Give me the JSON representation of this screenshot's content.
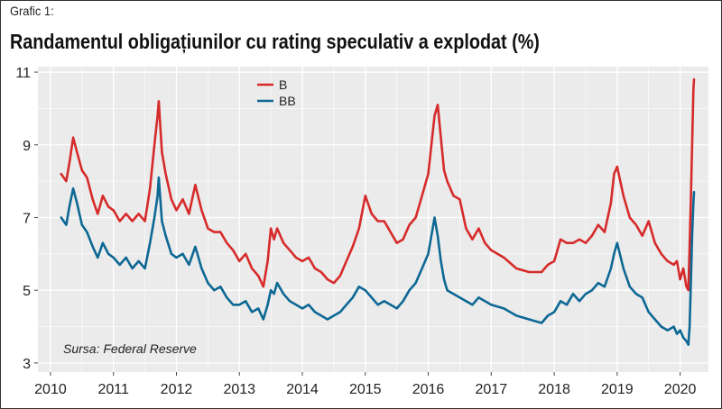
{
  "caption": "Grafic 1:",
  "title": "Randamentul obligațiunilor cu rating speculativ a explodat (%)",
  "source": "Sursa: Federal Reserve",
  "colors": {
    "panel": "#ebebeb",
    "grid": "#ffffff",
    "B": "#d62b2b",
    "BB": "#0d6894"
  },
  "chart_data": {
    "type": "line",
    "title": "Randamentul obligațiunilor cu rating speculativ a explodat (%)",
    "xlabel": "",
    "ylabel": "",
    "xlim": [
      2009.8,
      2020.45
    ],
    "ylim": [
      2.75,
      11.15
    ],
    "x_ticks": [
      2010,
      2011,
      2012,
      2013,
      2014,
      2015,
      2016,
      2017,
      2018,
      2019,
      2020
    ],
    "x_tick_labels": [
      "2010",
      "2011",
      "2012",
      "2013",
      "2014",
      "2015",
      "2016",
      "2017",
      "2018",
      "2019",
      "2020"
    ],
    "y_ticks": [
      3,
      5,
      7,
      9,
      11
    ],
    "y_tick_labels": [
      "3",
      "5",
      "7",
      "9",
      "11"
    ],
    "grid": true,
    "legend_position": "top-center",
    "series": [
      {
        "name": "B",
        "color": "#d62b2b",
        "x": [
          2010.17,
          2010.25,
          2010.3,
          2010.36,
          2010.42,
          2010.5,
          2010.58,
          2010.67,
          2010.75,
          2010.83,
          2010.92,
          2011.0,
          2011.1,
          2011.2,
          2011.3,
          2011.4,
          2011.5,
          2011.58,
          2011.65,
          2011.7,
          2011.72,
          2011.77,
          2011.83,
          2011.92,
          2012.0,
          2012.1,
          2012.2,
          2012.3,
          2012.4,
          2012.5,
          2012.6,
          2012.7,
          2012.8,
          2012.9,
          2013.0,
          2013.1,
          2013.2,
          2013.3,
          2013.38,
          2013.45,
          2013.5,
          2013.55,
          2013.6,
          2013.7,
          2013.8,
          2013.9,
          2014.0,
          2014.1,
          2014.2,
          2014.3,
          2014.4,
          2014.5,
          2014.6,
          2014.7,
          2014.8,
          2014.9,
          2015.0,
          2015.1,
          2015.2,
          2015.3,
          2015.4,
          2015.5,
          2015.6,
          2015.7,
          2015.8,
          2015.9,
          2016.0,
          2016.05,
          2016.1,
          2016.15,
          2016.2,
          2016.25,
          2016.3,
          2016.4,
          2016.5,
          2016.6,
          2016.7,
          2016.8,
          2016.9,
          2017.0,
          2017.2,
          2017.4,
          2017.6,
          2017.8,
          2017.9,
          2018.0,
          2018.1,
          2018.2,
          2018.3,
          2018.4,
          2018.5,
          2018.6,
          2018.7,
          2018.8,
          2018.9,
          2018.95,
          2019.0,
          2019.1,
          2019.2,
          2019.3,
          2019.4,
          2019.5,
          2019.6,
          2019.7,
          2019.8,
          2019.9,
          2019.95,
          2020.0,
          2020.05,
          2020.1,
          2020.13,
          2020.15,
          2020.17,
          2020.19,
          2020.21,
          2020.22
        ],
        "values": [
          8.2,
          8.0,
          8.5,
          9.2,
          8.8,
          8.3,
          8.1,
          7.5,
          7.1,
          7.6,
          7.3,
          7.2,
          6.9,
          7.1,
          6.9,
          7.1,
          6.9,
          7.8,
          9.0,
          9.8,
          10.2,
          8.8,
          8.2,
          7.5,
          7.2,
          7.5,
          7.1,
          7.9,
          7.2,
          6.7,
          6.6,
          6.6,
          6.3,
          6.1,
          5.8,
          6.0,
          5.6,
          5.4,
          5.1,
          5.8,
          6.7,
          6.4,
          6.7,
          6.3,
          6.1,
          5.9,
          5.8,
          5.9,
          5.6,
          5.5,
          5.3,
          5.2,
          5.4,
          5.8,
          6.2,
          6.7,
          7.6,
          7.1,
          6.9,
          6.9,
          6.6,
          6.3,
          6.4,
          6.8,
          7.0,
          7.6,
          8.2,
          9.0,
          9.8,
          10.1,
          9.2,
          8.3,
          8.0,
          7.6,
          7.5,
          6.7,
          6.4,
          6.7,
          6.3,
          6.1,
          5.9,
          5.6,
          5.5,
          5.5,
          5.7,
          5.8,
          6.4,
          6.3,
          6.3,
          6.4,
          6.3,
          6.5,
          6.8,
          6.6,
          7.4,
          8.2,
          8.4,
          7.6,
          7.0,
          6.8,
          6.5,
          6.9,
          6.3,
          6.0,
          5.8,
          5.7,
          5.8,
          5.3,
          5.6,
          5.1,
          5.0,
          6.2,
          7.5,
          9.0,
          10.5,
          10.8
        ]
      },
      {
        "name": "BB",
        "color": "#0d6894",
        "x": [
          2010.17,
          2010.25,
          2010.3,
          2010.36,
          2010.42,
          2010.5,
          2010.58,
          2010.67,
          2010.75,
          2010.83,
          2010.92,
          2011.0,
          2011.1,
          2011.2,
          2011.3,
          2011.4,
          2011.5,
          2011.58,
          2011.65,
          2011.7,
          2011.72,
          2011.77,
          2011.83,
          2011.92,
          2012.0,
          2012.1,
          2012.2,
          2012.3,
          2012.4,
          2012.5,
          2012.6,
          2012.7,
          2012.8,
          2012.9,
          2013.0,
          2013.1,
          2013.2,
          2013.3,
          2013.38,
          2013.45,
          2013.5,
          2013.55,
          2013.6,
          2013.7,
          2013.8,
          2013.9,
          2014.0,
          2014.1,
          2014.2,
          2014.3,
          2014.4,
          2014.5,
          2014.6,
          2014.7,
          2014.8,
          2014.9,
          2015.0,
          2015.1,
          2015.2,
          2015.3,
          2015.4,
          2015.5,
          2015.6,
          2015.7,
          2015.8,
          2015.9,
          2016.0,
          2016.05,
          2016.1,
          2016.15,
          2016.2,
          2016.25,
          2016.3,
          2016.4,
          2016.5,
          2016.6,
          2016.7,
          2016.8,
          2016.9,
          2017.0,
          2017.2,
          2017.4,
          2017.6,
          2017.8,
          2017.9,
          2018.0,
          2018.1,
          2018.2,
          2018.3,
          2018.4,
          2018.5,
          2018.6,
          2018.7,
          2018.8,
          2018.9,
          2018.95,
          2019.0,
          2019.1,
          2019.2,
          2019.3,
          2019.4,
          2019.5,
          2019.6,
          2019.7,
          2019.8,
          2019.9,
          2019.95,
          2020.0,
          2020.05,
          2020.1,
          2020.13,
          2020.15,
          2020.17,
          2020.19,
          2020.21,
          2020.22
        ],
        "values": [
          7.0,
          6.8,
          7.3,
          7.8,
          7.4,
          6.8,
          6.6,
          6.2,
          5.9,
          6.3,
          6.0,
          5.9,
          5.7,
          5.9,
          5.6,
          5.8,
          5.6,
          6.3,
          7.0,
          7.6,
          8.1,
          6.9,
          6.5,
          6.0,
          5.9,
          6.0,
          5.7,
          6.2,
          5.6,
          5.2,
          5.0,
          5.1,
          4.8,
          4.6,
          4.6,
          4.7,
          4.4,
          4.5,
          4.2,
          4.6,
          5.0,
          4.9,
          5.2,
          4.9,
          4.7,
          4.6,
          4.5,
          4.6,
          4.4,
          4.3,
          4.2,
          4.3,
          4.4,
          4.6,
          4.8,
          5.1,
          5.0,
          4.8,
          4.6,
          4.7,
          4.6,
          4.5,
          4.7,
          5.0,
          5.2,
          5.6,
          6.0,
          6.5,
          7.0,
          6.5,
          5.8,
          5.3,
          5.0,
          4.9,
          4.8,
          4.7,
          4.6,
          4.8,
          4.7,
          4.6,
          4.5,
          4.3,
          4.2,
          4.1,
          4.3,
          4.4,
          4.7,
          4.6,
          4.9,
          4.7,
          4.9,
          5.0,
          5.2,
          5.1,
          5.6,
          6.0,
          6.3,
          5.6,
          5.1,
          4.9,
          4.8,
          4.4,
          4.2,
          4.0,
          3.9,
          4.0,
          3.8,
          3.9,
          3.7,
          3.6,
          3.5,
          4.0,
          5.2,
          6.5,
          7.4,
          7.7
        ]
      }
    ]
  }
}
